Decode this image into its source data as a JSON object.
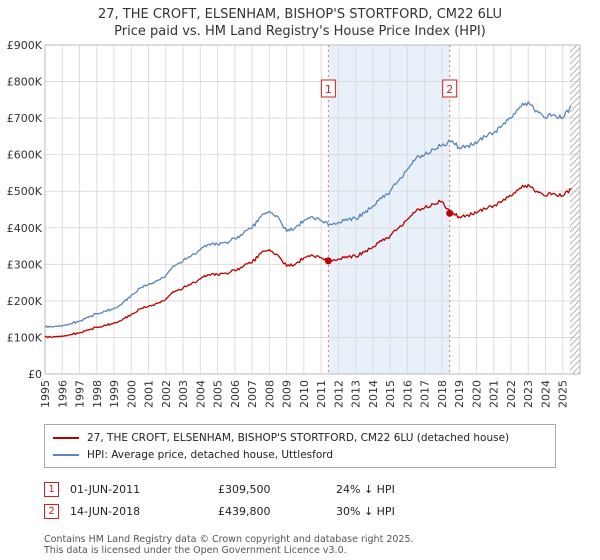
{
  "title": "27, THE CROFT, ELSENHAM, BISHOP'S STORTFORD, CM22 6LU",
  "subtitle": "Price paid vs. HM Land Registry's House Price Index (HPI)",
  "chart_data": {
    "type": "line",
    "values_unit": "GBP_thousands",
    "x_domain": [
      1995,
      2026
    ],
    "ylim_k": [
      0,
      900
    ],
    "grid": true,
    "legend_position": "bottom",
    "x": [
      1995,
      1995.5,
      1996,
      1996.5,
      1997,
      1997.5,
      1998,
      1998.5,
      1999,
      1999.5,
      2000,
      2000.5,
      2001,
      2001.5,
      2002,
      2002.5,
      2003,
      2003.5,
      2004,
      2004.5,
      2005,
      2005.5,
      2006,
      2006.5,
      2007,
      2007.5,
      2008,
      2008.5,
      2009,
      2009.5,
      2010,
      2010.5,
      2011,
      2011.5,
      2012,
      2012.5,
      2013,
      2013.5,
      2014,
      2014.5,
      2015,
      2015.5,
      2016,
      2016.5,
      2017,
      2017.5,
      2018,
      2018.5,
      2019,
      2019.5,
      2020,
      2020.5,
      2021,
      2021.5,
      2022,
      2022.5,
      2023,
      2023.5,
      2024,
      2024.5,
      2025,
      2025.5
    ],
    "series": [
      {
        "name": "27, THE CROFT, ELSENHAM, BISHOP'S STORTFORD, CM22 6LU (detached house)",
        "color": "#bb0000",
        "values": [
          100,
          102,
          104,
          108,
          113,
          120,
          128,
          133,
          140,
          150,
          163,
          178,
          185,
          193,
          205,
          225,
          235,
          248,
          260,
          272,
          272,
          276,
          283,
          295,
          305,
          330,
          340,
          325,
          295,
          300,
          318,
          325,
          318,
          310,
          315,
          318,
          322,
          333,
          348,
          363,
          378,
          400,
          423,
          446,
          455,
          465,
          472,
          440,
          430,
          435,
          440,
          452,
          460,
          473,
          487,
          508,
          518,
          500,
          487,
          494,
          487,
          505
        ]
      },
      {
        "name": "HPI: Average price, detached house, Uttlesford",
        "color": "#5a86b8",
        "values": [
          128,
          130,
          133,
          138,
          145,
          155,
          165,
          172,
          180,
          195,
          215,
          235,
          245,
          255,
          270,
          295,
          310,
          325,
          340,
          355,
          355,
          360,
          370,
          385,
          400,
          430,
          445,
          430,
          390,
          400,
          420,
          430,
          420,
          410,
          415,
          420,
          425,
          440,
          460,
          480,
          500,
          530,
          560,
          590,
          600,
          615,
          625,
          635,
          620,
          625,
          630,
          650,
          660,
          680,
          700,
          730,
          745,
          720,
          700,
          710,
          700,
          730
        ]
      }
    ],
    "y_ticks_k": [
      0,
      100,
      200,
      300,
      400,
      500,
      600,
      700,
      800,
      900
    ],
    "y_tick_labels": [
      "£0",
      "£100K",
      "£200K",
      "£300K",
      "£400K",
      "£500K",
      "£600K",
      "£700K",
      "£800K",
      "£900K"
    ],
    "x_tick_labels": [
      "1995",
      "1996",
      "1997",
      "1998",
      "1999",
      "2000",
      "2001",
      "2002",
      "2003",
      "2004",
      "2005",
      "2006",
      "2007",
      "2008",
      "2009",
      "2010",
      "2011",
      "2012",
      "2013",
      "2014",
      "2015",
      "2016",
      "2017",
      "2018",
      "2019",
      "2020",
      "2021",
      "2022",
      "2023",
      "2024",
      "2025"
    ],
    "markers": [
      {
        "label": "1",
        "year": 2011.42,
        "value_k": 309.5
      },
      {
        "label": "2",
        "year": 2018.45,
        "value_k": 439.8
      }
    ],
    "shaded_region": [
      2011.42,
      2018.45
    ],
    "hatched_from": 2025.42,
    "marker_line_color": "#dd7777",
    "shade_color": "#e8f0fa",
    "grid_color": "#dddddd",
    "border_color": "#bbbbbb"
  },
  "annotations": [
    {
      "num": "1",
      "date": "01-JUN-2011",
      "price": "£309,500",
      "hpi": "24% ↓ HPI"
    },
    {
      "num": "2",
      "date": "14-JUN-2018",
      "price": "£439,800",
      "hpi": "30% ↓ HPI"
    }
  ],
  "footer": [
    "Contains HM Land Registry data © Crown copyright and database right 2025.",
    "This data is licensed under the Open Government Licence v3.0."
  ]
}
